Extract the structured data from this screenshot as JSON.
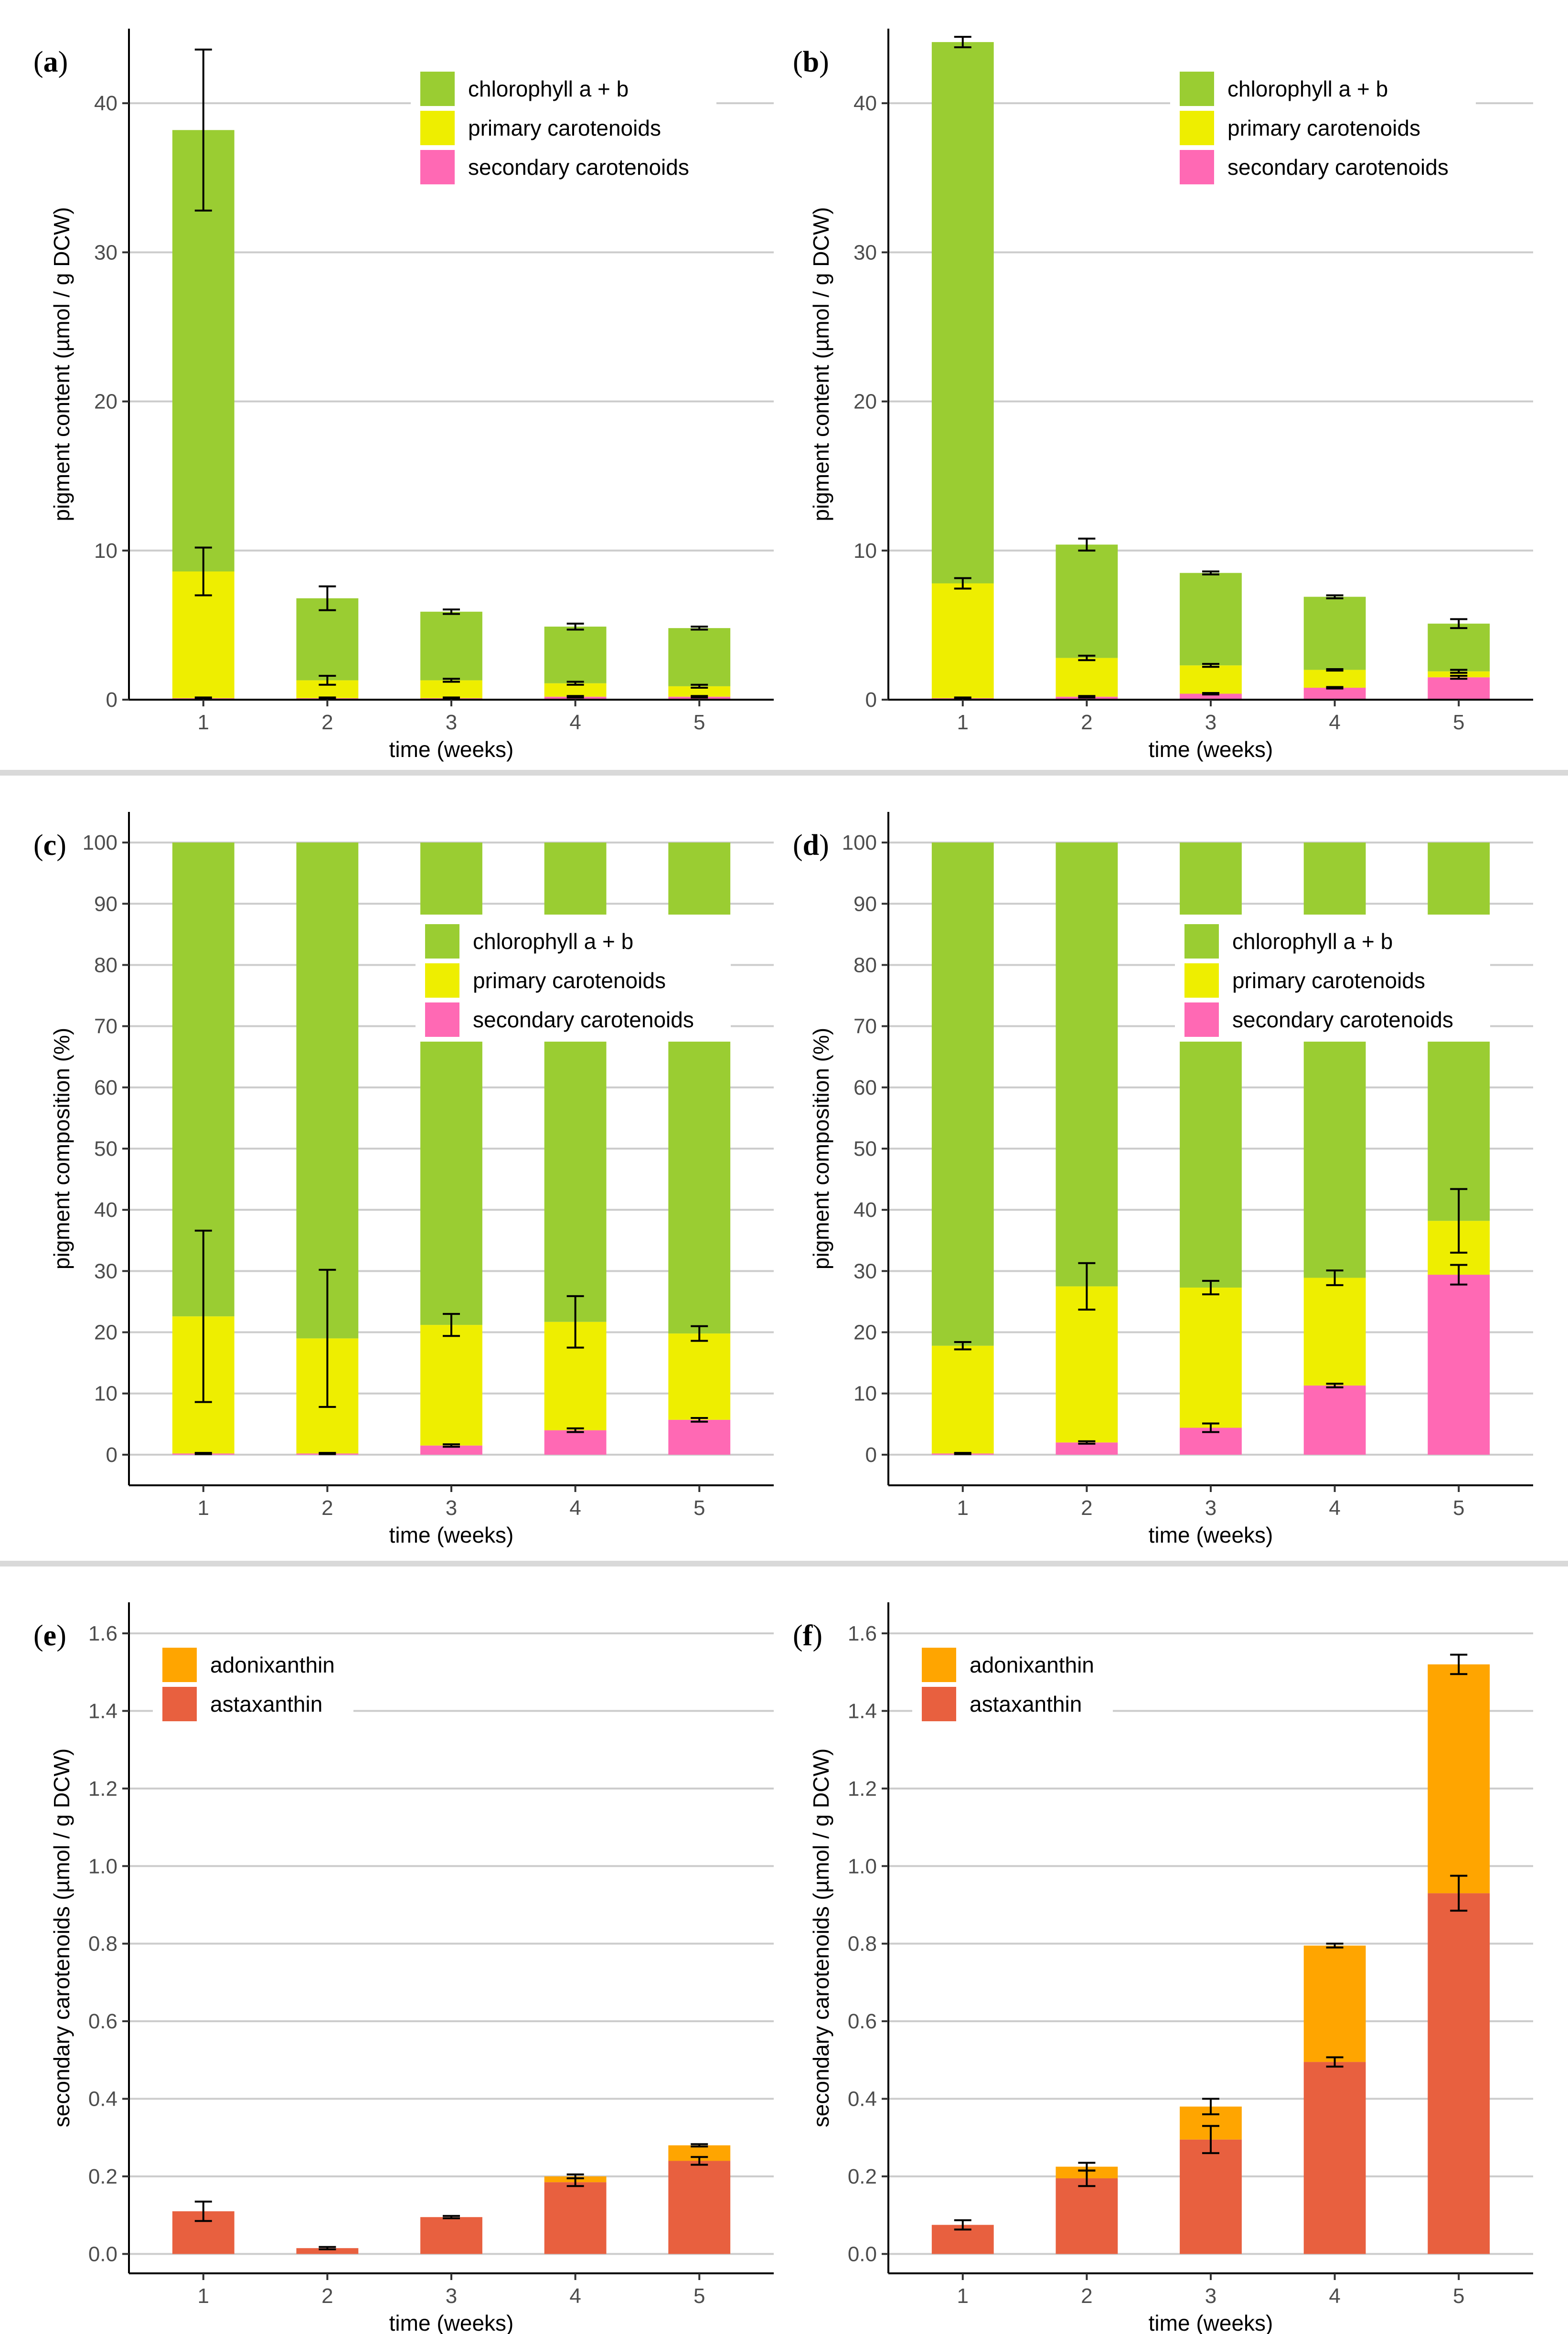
{
  "colors": {
    "chlorophyll": "#9acd32",
    "primary": "#eeee00",
    "secondary": "#ff69b4",
    "adonixanthin": "#ffa500",
    "astaxanthin": "#e8603f",
    "gridline": "#cccccc",
    "axis": "#000000"
  },
  "chart_data": [
    {
      "id": "a",
      "panel_label": "a",
      "type": "bar",
      "stacked": true,
      "xlabel": "time (weeks)",
      "ylabel": "pigment content (µmol / g DCW)",
      "ylim": [
        0,
        45
      ],
      "yticks": [
        0,
        10,
        20,
        30,
        40
      ],
      "categories": [
        "1",
        "2",
        "3",
        "4",
        "5"
      ],
      "series": [
        {
          "name": "secondary carotenoids",
          "key": "secondary",
          "values": [
            0.1,
            0.1,
            0.1,
            0.2,
            0.2
          ],
          "errors": [
            0.05,
            0.05,
            0.05,
            0.05,
            0.05
          ]
        },
        {
          "name": "primary carotenoids",
          "key": "primary",
          "values": [
            8.5,
            1.2,
            1.2,
            0.9,
            0.7
          ],
          "errors": [
            1.6,
            0.3,
            0.1,
            0.1,
            0.1
          ]
        },
        {
          "name": "chlorophyll a + b",
          "key": "chlorophyll",
          "values": [
            29.6,
            5.5,
            4.6,
            3.8,
            3.9
          ],
          "errors": [
            5.4,
            0.8,
            0.15,
            0.2,
            0.1
          ]
        }
      ],
      "legend_position": "top-right"
    },
    {
      "id": "b",
      "panel_label": "b",
      "type": "bar",
      "stacked": true,
      "xlabel": "time (weeks)",
      "ylabel": "pigment content (µmol / g DCW)",
      "ylim": [
        0,
        45
      ],
      "yticks": [
        0,
        10,
        20,
        30,
        40
      ],
      "categories": [
        "1",
        "2",
        "3",
        "4",
        "5"
      ],
      "series": [
        {
          "name": "secondary carotenoids",
          "key": "secondary",
          "values": [
            0.1,
            0.2,
            0.4,
            0.8,
            1.5
          ],
          "errors": [
            0.05,
            0.05,
            0.05,
            0.05,
            0.1
          ]
        },
        {
          "name": "primary carotenoids",
          "key": "primary",
          "values": [
            7.7,
            2.6,
            1.9,
            1.2,
            0.4
          ],
          "errors": [
            0.35,
            0.15,
            0.1,
            0.05,
            0.1
          ]
        },
        {
          "name": "chlorophyll a + b",
          "key": "chlorophyll",
          "values": [
            36.3,
            7.6,
            6.2,
            4.9,
            3.2
          ],
          "errors": [
            0.35,
            0.4,
            0.1,
            0.1,
            0.3
          ]
        }
      ],
      "legend_position": "top-right"
    },
    {
      "id": "c",
      "panel_label": "c",
      "type": "bar",
      "stacked": true,
      "xlabel": "time (weeks)",
      "ylabel": "pigment composition (%)",
      "ylim": [
        -5,
        105
      ],
      "yticks": [
        0,
        10,
        20,
        30,
        40,
        50,
        60,
        70,
        80,
        90,
        100
      ],
      "categories": [
        "1",
        "2",
        "3",
        "4",
        "5"
      ],
      "series": [
        {
          "name": "secondary carotenoids",
          "key": "secondary",
          "values": [
            0.2,
            0.2,
            1.5,
            4.0,
            5.7
          ],
          "errors": [
            0.1,
            0.1,
            0.2,
            0.3,
            0.3
          ]
        },
        {
          "name": "primary carotenoids",
          "key": "primary",
          "values": [
            22.4,
            18.8,
            19.7,
            17.7,
            14.1
          ],
          "errors": [
            14,
            11.2,
            1.8,
            4.2,
            1.2
          ]
        },
        {
          "name": "chlorophyll a + b",
          "key": "chlorophyll",
          "values": [
            77.4,
            81.0,
            78.8,
            78.3,
            80.2
          ],
          "errors": [
            0,
            0,
            0,
            0,
            0
          ]
        }
      ],
      "legend_position": "top-right"
    },
    {
      "id": "d",
      "panel_label": "d",
      "type": "bar",
      "stacked": true,
      "xlabel": "time (weeks)",
      "ylabel": "pigment composition (%)",
      "ylim": [
        -5,
        105
      ],
      "yticks": [
        0,
        10,
        20,
        30,
        40,
        50,
        60,
        70,
        80,
        90,
        100
      ],
      "categories": [
        "1",
        "2",
        "3",
        "4",
        "5"
      ],
      "series": [
        {
          "name": "secondary carotenoids",
          "key": "secondary",
          "values": [
            0.2,
            2.0,
            4.4,
            11.3,
            29.4
          ],
          "errors": [
            0.1,
            0.2,
            0.7,
            0.3,
            1.6
          ]
        },
        {
          "name": "primary carotenoids",
          "key": "primary",
          "values": [
            17.6,
            25.5,
            22.9,
            17.6,
            8.8
          ],
          "errors": [
            0.6,
            3.8,
            1.1,
            1.2,
            5.2
          ]
        },
        {
          "name": "chlorophyll a + b",
          "key": "chlorophyll",
          "values": [
            82.2,
            72.5,
            72.7,
            71.1,
            61.8
          ],
          "errors": [
            0,
            0,
            0,
            0,
            0
          ]
        }
      ],
      "legend_position": "top-right"
    },
    {
      "id": "e",
      "panel_label": "e",
      "type": "bar",
      "stacked": true,
      "xlabel": "time (weeks)",
      "ylabel": "secondary carotenoids (µmol / g DCW)",
      "ylim": [
        -0.05,
        1.68
      ],
      "yticks": [
        0.0,
        0.2,
        0.4,
        0.6,
        0.8,
        1.0,
        1.2,
        1.4,
        1.6
      ],
      "categories": [
        "1",
        "2",
        "3",
        "4",
        "5"
      ],
      "series": [
        {
          "name": "astaxanthin",
          "key": "astaxanthin",
          "values": [
            0.11,
            0.015,
            0.095,
            0.185,
            0.24
          ],
          "errors": [
            0.025,
            0.003,
            0.003,
            0.01,
            0.01
          ]
        },
        {
          "name": "adonixanthin",
          "key": "adonixanthin",
          "values": [
            0.0,
            0.0,
            0.0,
            0.015,
            0.04
          ],
          "errors": [
            0,
            0,
            0,
            0.005,
            0.003
          ]
        }
      ],
      "legend_position": "top-left"
    },
    {
      "id": "f",
      "panel_label": "f",
      "type": "bar",
      "stacked": true,
      "xlabel": "time (weeks)",
      "ylabel": "secondary carotenoids (µmol / g DCW)",
      "ylim": [
        -0.05,
        1.68
      ],
      "yticks": [
        0.0,
        0.2,
        0.4,
        0.6,
        0.8,
        1.0,
        1.2,
        1.4,
        1.6
      ],
      "categories": [
        "1",
        "2",
        "3",
        "4",
        "5"
      ],
      "series": [
        {
          "name": "astaxanthin",
          "key": "astaxanthin",
          "values": [
            0.075,
            0.195,
            0.295,
            0.495,
            0.93
          ],
          "errors": [
            0.012,
            0.02,
            0.035,
            0.012,
            0.045
          ]
        },
        {
          "name": "adonixanthin",
          "key": "adonixanthin",
          "values": [
            0.0,
            0.03,
            0.085,
            0.3,
            0.59
          ],
          "errors": [
            0,
            0.01,
            0.02,
            0.005,
            0.025
          ]
        }
      ],
      "legend_position": "top-left"
    }
  ]
}
